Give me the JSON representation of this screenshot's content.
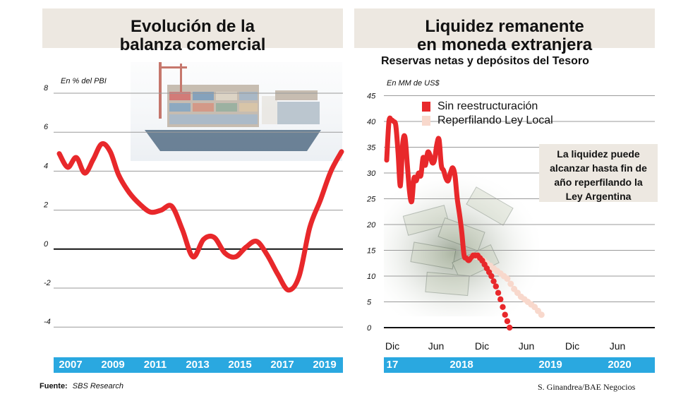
{
  "left": {
    "title_line1": "Evolución de la",
    "title_line2": "balanza comercial",
    "unit": "En % del PBI",
    "x_labels": [
      "2007",
      "2009",
      "2011",
      "2013",
      "2015",
      "2017",
      "2019"
    ]
  },
  "right": {
    "title_line1": "Liquidez remanente",
    "title_line2": "en moneda extranjera",
    "subtitle": "Reservas netas y depósitos del Tesoro",
    "unit": "En MM de US$",
    "month_labels": [
      "Dic",
      "Jun",
      "Dic",
      "Jun",
      "Dic",
      "Jun"
    ],
    "year_labels": [
      "17",
      "2018",
      "2019",
      "2020"
    ],
    "legend": [
      "Sin reestructuración",
      "Reperfilando Ley Local"
    ],
    "annotation": [
      "La liquidez puede",
      "alcanzar hasta fin de",
      "año reperfilando la",
      "Ley Argentina"
    ]
  },
  "footer": {
    "source_label": "Fuente:",
    "source_value": "SBS Research",
    "credit": "S. Ginandrea/BAE Negocios"
  },
  "colors": {
    "line_red": "#e8282b",
    "dotted_light": "#f8d8cc",
    "title_bg": "#ede8e1",
    "bar_blue": "#2aa8e0",
    "grid": "#9a9a9a"
  },
  "chart_data": [
    {
      "type": "line",
      "title": "Evolución de la balanza comercial",
      "ylabel": "En % del PBI",
      "ylim": [
        -4,
        8
      ],
      "yticks": [
        8,
        6,
        4,
        2,
        0,
        -2,
        -4
      ],
      "x": [
        2006.5,
        2006.9,
        2007.3,
        2007.7,
        2008.1,
        2008.5,
        2008.9,
        2009.3,
        2009.8,
        2010.3,
        2010.8,
        2011.3,
        2011.8,
        2012.3,
        2012.8,
        2013.3,
        2013.8,
        2014.3,
        2014.8,
        2015.3,
        2015.8,
        2016.3,
        2016.8,
        2017.3,
        2017.8,
        2018.3,
        2018.8,
        2019.3,
        2019.8
      ],
      "series": [
        {
          "values": [
            4.9,
            4.2,
            4.7,
            3.9,
            4.6,
            5.4,
            5.0,
            3.8,
            2.9,
            2.3,
            1.9,
            2.0,
            2.2,
            1.0,
            -0.4,
            0.5,
            0.6,
            -0.2,
            -0.4,
            0.1,
            0.4,
            -0.3,
            -1.3,
            -2.1,
            -1.4,
            1.1,
            2.5,
            4.0,
            5.0
          ]
        }
      ],
      "x_labels": [
        "2007",
        "2009",
        "2011",
        "2013",
        "2015",
        "2017",
        "2019"
      ],
      "grid": true
    },
    {
      "type": "line",
      "title": "Reservas netas y depósitos del Tesoro",
      "ylabel": "En MM de US$",
      "ylim": [
        0,
        45
      ],
      "yticks": [
        0,
        5,
        10,
        15,
        20,
        25,
        30,
        35,
        40,
        45
      ],
      "x_ticks": [
        "Dic",
        "Jun",
        "Dic",
        "Jun",
        "Dic",
        "Jun"
      ],
      "x_years": [
        "17",
        "2018",
        "2019",
        "2020"
      ],
      "legend_position": "top-right",
      "grid": true,
      "series": [
        {
          "name": "Sin reestructuración",
          "style": "solid",
          "x": [
            0.0,
            0.5,
            1.0,
            1.5,
            2.0,
            2.5,
            3.0,
            3.5,
            4.0,
            4.5,
            5.0,
            5.5,
            6.0,
            6.5,
            7.0,
            7.5,
            8.0,
            8.5,
            9.0,
            9.5,
            10.0,
            10.5,
            11.0,
            11.5,
            12.0,
            12.5,
            13.0,
            13.5,
            14.0,
            14.5,
            15.0,
            15.5,
            16.0,
            16.5,
            17.0,
            17.5,
            18.0,
            18.5,
            19.0
          ],
          "values": [
            32.5,
            40.0,
            40.3,
            40.0,
            39.2,
            34.0,
            27.5,
            35.5,
            37.0,
            32.0,
            26.5,
            24.5,
            29.0,
            28.5,
            30.0,
            29.5,
            33.0,
            31.5,
            34.0,
            33.5,
            32.0,
            32.5,
            35.5,
            36.5,
            31.5,
            30.5,
            29.0,
            28.5,
            30.0,
            31.0,
            29.5,
            25.0,
            22.0,
            18.5,
            14.0,
            13.5,
            13.0,
            13.5,
            14.0
          ]
        },
        {
          "name": "Sin reestructuración",
          "style": "dotted",
          "x": [
            19.0,
            20.0,
            21.0,
            22.0,
            23.0,
            24.0,
            25.0,
            26.0,
            27.0
          ],
          "values": [
            14.0,
            14.0,
            13.0,
            11.5,
            10.0,
            8.0,
            5.5,
            2.5,
            0.0
          ]
        },
        {
          "name": "Reperfilando Ley Local",
          "style": "dotted",
          "x": [
            19.0,
            20.5,
            22.0,
            23.5,
            25.0,
            26.5,
            28.0,
            29.5,
            31.0,
            32.5,
            34.0
          ],
          "values": [
            14.0,
            13.5,
            12.5,
            11.5,
            10.5,
            9.5,
            7.5,
            6.0,
            5.0,
            4.0,
            2.5
          ]
        }
      ]
    }
  ]
}
